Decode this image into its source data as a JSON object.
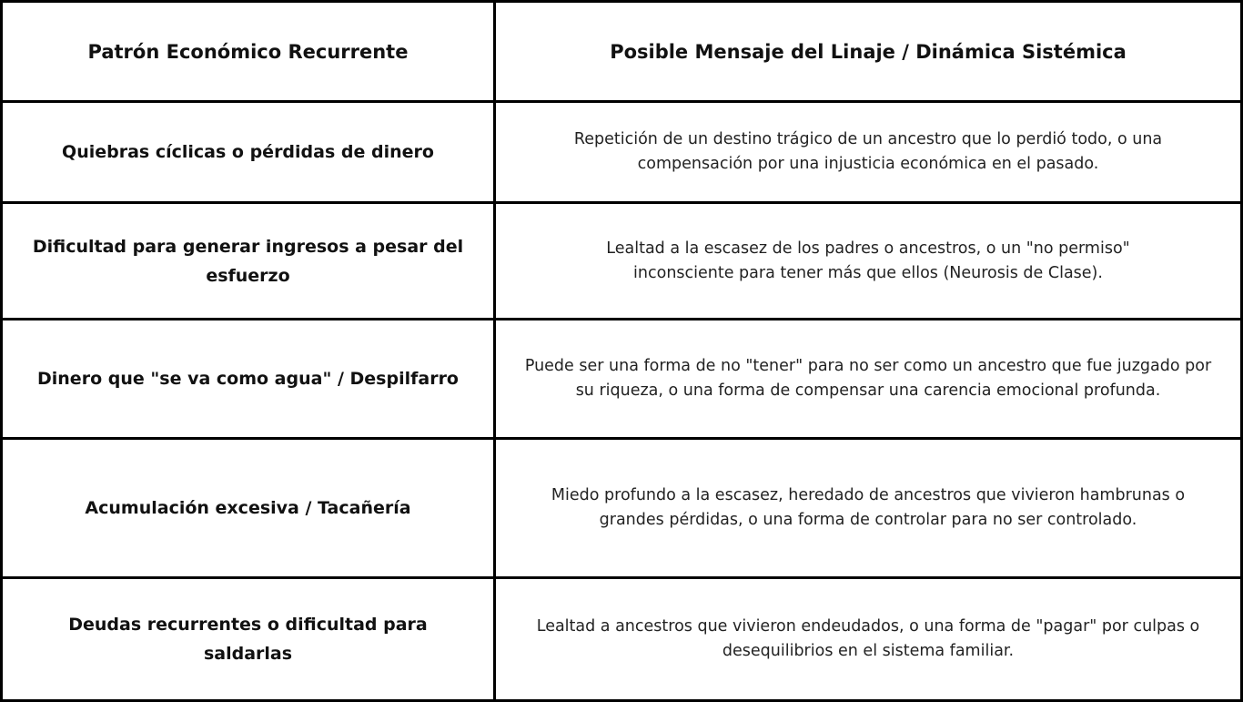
{
  "headers": [
    "Patrón Económico Recurrente",
    "Posible Mensaje del Linaje / Dinámica Sistémica"
  ],
  "rows": [
    {
      "pattern": "Quiebras cíclicas o pérdidas de dinero",
      "message": "Repetición de un destino trágico de un ancestro que lo perdió todo, o una compensación por una injusticia económica en el pasado."
    },
    {
      "pattern": "Dificultad para generar ingresos a pesar del esfuerzo",
      "message": "Lealtad a la escasez de los padres o ancestros, o un \"no permiso\" inconsciente para tener más que ellos (Neurosis de Clase)."
    },
    {
      "pattern": "Dinero que \"se va como agua\" / Despilfarro",
      "message": "Puede ser una forma de no \"tener\" para no ser como un ancestro que fue juzgado por su riqueza, o una forma de compensar una carencia emocional profunda."
    },
    {
      "pattern": "Acumulación excesiva / Tacañería",
      "message": "Miedo profundo a la escasez, heredado de ancestros que vivieron hambrunas o grandes pérdidas, o una forma de controlar para no ser controlado."
    },
    {
      "pattern": "Deudas recurrentes o dificultad para saldarlas",
      "message": "Lealtad a ancestros que vivieron endeudados, o una forma de \"pagar\" por culpas o desequilibrios en el sistema familiar."
    }
  ]
}
